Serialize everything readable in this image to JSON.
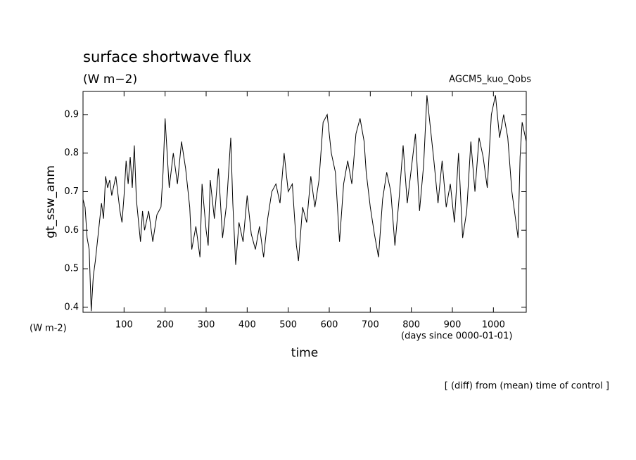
{
  "chart_data": {
    "type": "line",
    "title": "surface shortwave flux",
    "subtitle": "(W m−2)",
    "annotation_right": "AGCM5_kuo_Qobs",
    "ylabel": "gt_ssw_anm",
    "xlabel": "time",
    "y_unit": "(W m-2)",
    "x_unit": "(days since 0000-01-01)",
    "footnote": "[ (diff) from (mean) time of control ]",
    "color": "#000000",
    "xlim": [
      0,
      1080
    ],
    "ylim": [
      0.387,
      0.96
    ],
    "xticks": [
      100,
      200,
      300,
      400,
      500,
      600,
      700,
      800,
      900,
      1000
    ],
    "yticks": [
      0.4,
      0.5,
      0.6,
      0.7,
      0.8,
      0.9
    ],
    "x": [
      0,
      5,
      10,
      15,
      20,
      25,
      30,
      40,
      45,
      50,
      55,
      60,
      65,
      70,
      80,
      90,
      95,
      100,
      105,
      110,
      115,
      120,
      125,
      130,
      140,
      145,
      150,
      160,
      170,
      180,
      190,
      195,
      200,
      205,
      210,
      220,
      230,
      240,
      250,
      260,
      265,
      275,
      285,
      290,
      300,
      305,
      310,
      320,
      330,
      340,
      350,
      360,
      365,
      372,
      380,
      390,
      400,
      410,
      420,
      430,
      440,
      450,
      460,
      470,
      480,
      490,
      500,
      510,
      520,
      525,
      535,
      545,
      555,
      565,
      575,
      585,
      595,
      605,
      615,
      625,
      635,
      645,
      655,
      665,
      675,
      685,
      690,
      700,
      710,
      720,
      730,
      740,
      750,
      760,
      770,
      780,
      790,
      800,
      810,
      820,
      830,
      838,
      845,
      855,
      865,
      875,
      885,
      895,
      905,
      915,
      925,
      935,
      945,
      955,
      965,
      975,
      985,
      995,
      1005,
      1015,
      1025,
      1035,
      1045,
      1055,
      1060,
      1065,
      1070,
      1080
    ],
    "values": [
      0.68,
      0.66,
      0.58,
      0.55,
      0.39,
      0.48,
      0.52,
      0.62,
      0.67,
      0.63,
      0.74,
      0.71,
      0.73,
      0.69,
      0.74,
      0.65,
      0.62,
      0.69,
      0.78,
      0.72,
      0.79,
      0.71,
      0.82,
      0.68,
      0.57,
      0.65,
      0.6,
      0.65,
      0.57,
      0.64,
      0.66,
      0.75,
      0.89,
      0.8,
      0.71,
      0.8,
      0.72,
      0.83,
      0.76,
      0.66,
      0.55,
      0.61,
      0.53,
      0.72,
      0.6,
      0.56,
      0.73,
      0.63,
      0.76,
      0.58,
      0.67,
      0.84,
      0.67,
      0.51,
      0.62,
      0.57,
      0.69,
      0.59,
      0.55,
      0.61,
      0.53,
      0.63,
      0.7,
      0.72,
      0.67,
      0.8,
      0.7,
      0.72,
      0.56,
      0.52,
      0.66,
      0.62,
      0.74,
      0.66,
      0.73,
      0.88,
      0.9,
      0.8,
      0.75,
      0.57,
      0.72,
      0.78,
      0.72,
      0.85,
      0.89,
      0.83,
      0.75,
      0.66,
      0.59,
      0.53,
      0.68,
      0.75,
      0.7,
      0.56,
      0.68,
      0.82,
      0.67,
      0.76,
      0.85,
      0.65,
      0.77,
      0.95,
      0.88,
      0.78,
      0.67,
      0.78,
      0.66,
      0.72,
      0.62,
      0.8,
      0.58,
      0.65,
      0.83,
      0.7,
      0.84,
      0.79,
      0.71,
      0.9,
      0.95,
      0.84,
      0.9,
      0.84,
      0.7,
      0.62,
      0.58,
      0.79,
      0.88,
      0.83
    ]
  }
}
